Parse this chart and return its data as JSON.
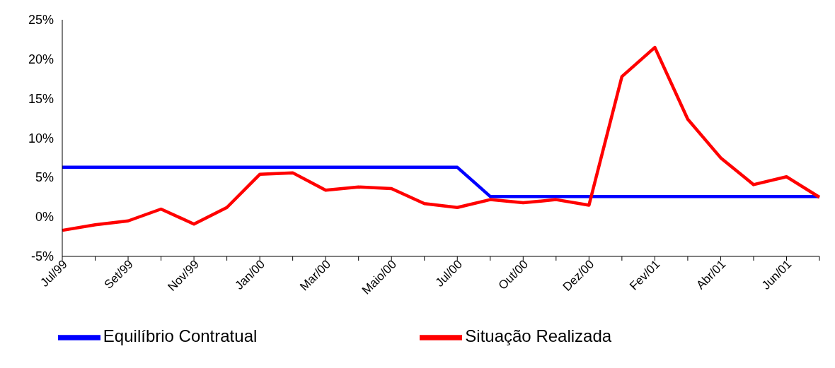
{
  "chart_data": {
    "type": "line",
    "categories": [
      "Jul/99",
      null,
      "Set/99",
      null,
      "Nov/99",
      null,
      "Jan/00",
      null,
      "Mar/00",
      null,
      "Maio/00",
      null,
      "Jul/00",
      null,
      "Out/00",
      null,
      "Dez/00",
      null,
      "Fev/01",
      null,
      "Abr/01",
      null,
      "Jun/01",
      null
    ],
    "series": [
      {
        "name": "Equilíbrio Contratual",
        "color": "#0000ff",
        "values": [
          6.3,
          6.3,
          6.3,
          6.3,
          6.3,
          6.3,
          6.3,
          6.3,
          6.3,
          6.3,
          6.3,
          6.3,
          6.3,
          2.6,
          2.6,
          2.6,
          2.6,
          2.6,
          2.6,
          2.6,
          2.6,
          2.6,
          2.6,
          2.6
        ]
      },
      {
        "name": "Situação Realizada",
        "color": "#ff0000",
        "values": [
          -1.7,
          -1.0,
          -0.5,
          1.0,
          -0.9,
          1.2,
          5.4,
          5.6,
          3.4,
          3.8,
          3.6,
          1.7,
          1.2,
          2.2,
          1.8,
          2.2,
          1.5,
          17.8,
          21.5,
          12.4,
          7.5,
          4.1,
          5.1,
          2.5
        ]
      }
    ],
    "ylim": [
      -5,
      25
    ],
    "yticks": [
      {
        "value": -5,
        "label": "-5%"
      },
      {
        "value": 0,
        "label": "0%"
      },
      {
        "value": 5,
        "label": "5%"
      },
      {
        "value": 10,
        "label": "10%"
      },
      {
        "value": 15,
        "label": "15%"
      },
      {
        "value": 20,
        "label": "20%"
      },
      {
        "value": 25,
        "label": "25%"
      }
    ],
    "grid": false,
    "legend": "bottom",
    "marker": "none",
    "line_style": "solid"
  }
}
